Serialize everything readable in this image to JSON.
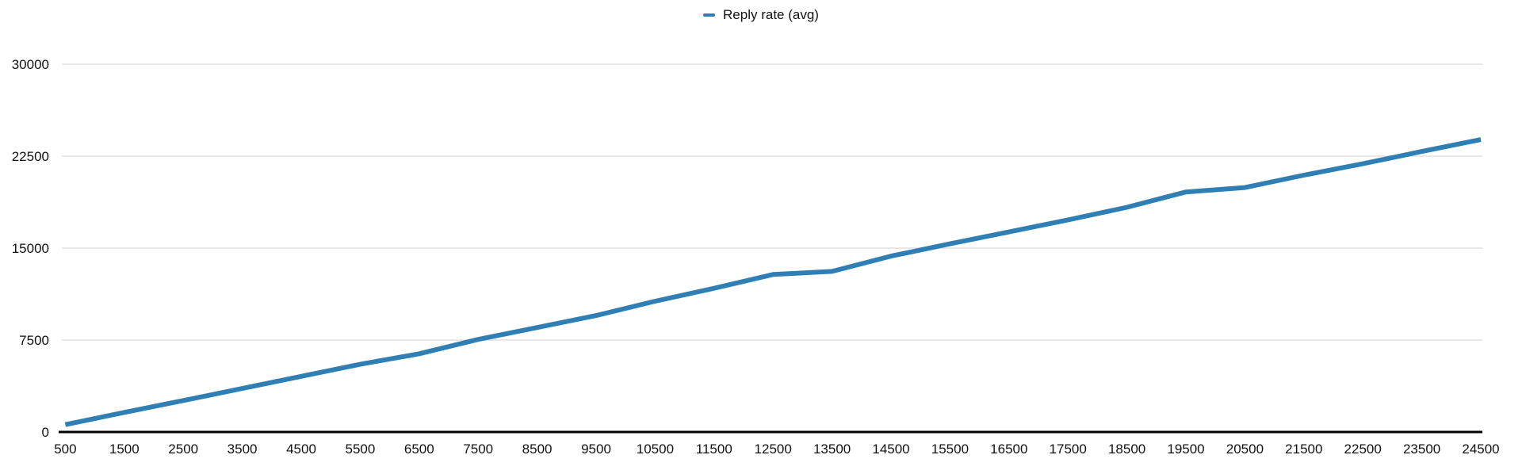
{
  "legend": {
    "label": "Reply rate (avg)"
  },
  "colors": {
    "series": "#2f7fb4",
    "gridline": "#e0e0e0",
    "axis": "#000000",
    "text": "#111111",
    "background": "#ffffff"
  },
  "chart_data": {
    "type": "line",
    "title": "",
    "xlabel": "",
    "ylabel": "",
    "legend_position": "top-center",
    "grid": "horizontal",
    "xlim": [
      500,
      24500
    ],
    "ylim": [
      0,
      30000
    ],
    "y_ticks": [
      0,
      7500,
      15000,
      22500,
      30000
    ],
    "x_ticks": [
      500,
      1500,
      2500,
      3500,
      4500,
      5500,
      6500,
      7500,
      8500,
      9500,
      10500,
      11500,
      12500,
      13500,
      14500,
      15500,
      16500,
      17500,
      18500,
      19500,
      20500,
      21500,
      22500,
      23500,
      24500
    ],
    "x": [
      500,
      1500,
      2500,
      3500,
      4500,
      5500,
      6500,
      7500,
      8500,
      9500,
      10500,
      11500,
      12500,
      13500,
      14500,
      15500,
      16500,
      17500,
      18500,
      19500,
      20500,
      21500,
      22500,
      23500,
      24500
    ],
    "series": [
      {
        "name": "Reply rate (avg)",
        "color": "#2f7fb4",
        "values": [
          600,
          1600,
          2570,
          3550,
          4540,
          5520,
          6380,
          7550,
          8520,
          9500,
          10670,
          11720,
          12850,
          13100,
          14350,
          15350,
          16320,
          17300,
          18330,
          19580,
          19940,
          20950,
          21880,
          22880,
          23850
        ]
      }
    ]
  }
}
